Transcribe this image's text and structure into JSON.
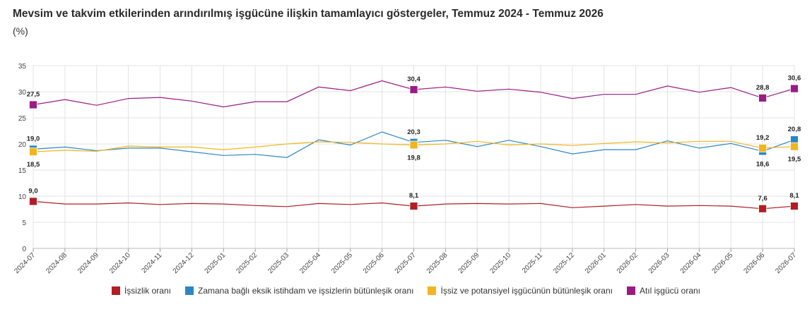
{
  "title": "Mevsim ve takvim etkilerinden arındırılmış işgücüne ilişkin tamamlayıcı göstergeler, Temmuz 2024 - Temmuz 2026",
  "subtitle": "(%)",
  "chart_data": {
    "type": "line",
    "title": "Mevsim ve takvim etkilerinden arındırılmış işgücüne ilişkin tamamlayıcı göstergeler, Temmuz 2024 - Temmuz 2026",
    "subtitle": "(%)",
    "xlabel": "",
    "ylabel": "",
    "ylim": [
      0,
      35
    ],
    "yticks": [
      "0",
      "5",
      "10",
      "15",
      "20",
      "25",
      "30",
      "35"
    ],
    "grid": true,
    "legend_position": "bottom",
    "categories": [
      "2024-07",
      "2024-08",
      "2024-09",
      "2024-10",
      "2024-11",
      "2024-12",
      "2025-01",
      "2025-02",
      "2025-03",
      "2025-04",
      "2025-05",
      "2025-06",
      "2025-07",
      "2025-08",
      "2025-09",
      "2025-10",
      "2025-11",
      "2025-12",
      "2026-01",
      "2026-02",
      "2026-03",
      "2026-04",
      "2026-05",
      "2026-06",
      "2026-07"
    ],
    "series": [
      {
        "name": "İşsizlik oranı",
        "color": "#b01e23",
        "values": [
          9.0,
          8.5,
          8.5,
          8.7,
          8.4,
          8.6,
          8.5,
          8.2,
          8.0,
          8.6,
          8.4,
          8.7,
          8.1,
          8.5,
          8.6,
          8.5,
          8.6,
          7.8,
          8.1,
          8.4,
          8.1,
          8.2,
          8.1,
          7.6,
          8.1
        ],
        "labels": {
          "0": "9,0",
          "12": "8,1",
          "23": "7,6",
          "24": "8,1"
        },
        "label_pos": {
          "0": "above",
          "12": "above",
          "23": "above",
          "24": "above"
        }
      },
      {
        "name": "Zamana bağlı eksik istihdam ve işsizlerin bütünleşik oranı",
        "color": "#2a86c6",
        "values": [
          19.0,
          19.4,
          18.7,
          19.2,
          19.2,
          18.5,
          17.8,
          18.0,
          17.4,
          20.8,
          19.8,
          22.3,
          20.3,
          20.7,
          19.5,
          20.7,
          19.5,
          18.1,
          18.9,
          18.9,
          20.6,
          19.2,
          20.1,
          18.6,
          20.8
        ],
        "labels": {
          "0": "19,0",
          "12": "20,3",
          "23": "18,6",
          "24": "20,8"
        },
        "label_pos": {
          "0": "above",
          "12": "above",
          "23": "below",
          "24": "above"
        }
      },
      {
        "name": "İşsiz ve potansiyel işgücünün bütünleşik oranı",
        "color": "#f2b51f",
        "values": [
          18.5,
          18.8,
          18.6,
          19.6,
          19.4,
          19.4,
          18.9,
          19.4,
          20.0,
          20.4,
          20.3,
          20.0,
          19.8,
          20.0,
          20.5,
          19.8,
          20.0,
          19.7,
          20.1,
          20.4,
          20.2,
          20.5,
          20.5,
          19.2,
          19.5
        ],
        "labels": {
          "0": "18,5",
          "12": "19,8",
          "23": "19,2",
          "24": "19,5"
        },
        "label_pos": {
          "0": "below",
          "12": "below",
          "23": "above",
          "24": "below"
        }
      },
      {
        "name": "Atıl işgücü oranı",
        "color": "#9b1b85",
        "values": [
          27.5,
          28.5,
          27.4,
          28.7,
          28.9,
          28.2,
          27.1,
          28.1,
          28.1,
          30.9,
          30.2,
          32.1,
          30.4,
          30.9,
          30.1,
          30.5,
          29.9,
          28.7,
          29.5,
          29.5,
          31.1,
          29.9,
          30.8,
          28.8,
          30.6
        ],
        "labels": {
          "0": "27,5",
          "12": "30,4",
          "23": "28,8",
          "24": "30,6"
        },
        "label_pos": {
          "0": "above",
          "12": "above",
          "23": "above",
          "24": "above"
        }
      }
    ]
  }
}
